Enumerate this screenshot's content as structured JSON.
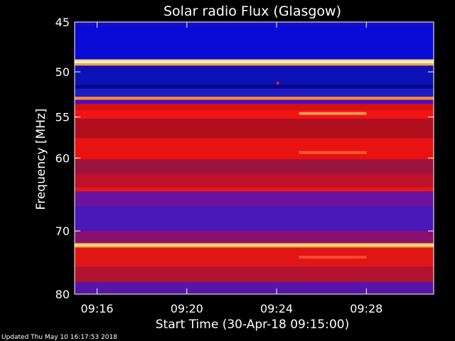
{
  "chart_data": {
    "type": "heatmap",
    "title": "Solar radio Flux (Glasgow)",
    "xlabel": "Start Time (30-Apr-18 09:15:00)",
    "ylabel": "Frequency [MHz]",
    "x_range": [
      "09:15:00",
      "09:31:00"
    ],
    "y_range_mhz": [
      45,
      80
    ],
    "y_scale": "log",
    "x_ticks": [
      {
        "t": "09:16:00",
        "label": "09:16"
      },
      {
        "t": "09:20:00",
        "label": "09:20"
      },
      {
        "t": "09:24:00",
        "label": "09:24"
      },
      {
        "t": "09:28:00",
        "label": "09:28"
      }
    ],
    "y_ticks": [
      {
        "value": 45,
        "label": "45"
      },
      {
        "value": 50,
        "label": "50"
      },
      {
        "value": 55,
        "label": "55"
      },
      {
        "value": 60,
        "label": "60"
      },
      {
        "value": 70,
        "label": "70"
      },
      {
        "value": 80,
        "label": "80"
      }
    ],
    "bands": [
      {
        "f_from": 45.0,
        "f_to": 45.4,
        "color": "#1010c8"
      },
      {
        "f_from": 45.4,
        "f_to": 48.7,
        "color": "#0a0ad6"
      },
      {
        "f_from": 48.7,
        "f_to": 48.9,
        "color": "#ffe070"
      },
      {
        "f_from": 48.9,
        "f_to": 49.1,
        "color": "#fffbe0"
      },
      {
        "f_from": 49.1,
        "f_to": 49.35,
        "color": "#ffa040"
      },
      {
        "f_from": 49.35,
        "f_to": 51.4,
        "color": "#0d12b4"
      },
      {
        "f_from": 51.4,
        "f_to": 51.8,
        "color": "#050590"
      },
      {
        "f_from": 51.8,
        "f_to": 52.7,
        "color": "#1c1cc0"
      },
      {
        "f_from": 52.7,
        "f_to": 53.05,
        "color": "#ff8a30"
      },
      {
        "f_from": 53.05,
        "f_to": 53.5,
        "color": "#4a10c0"
      },
      {
        "f_from": 53.5,
        "f_to": 54.2,
        "color": "#d81010"
      },
      {
        "f_from": 54.2,
        "f_to": 55.2,
        "color": "#f01414"
      },
      {
        "f_from": 55.2,
        "f_to": 57.5,
        "color": "#b0101e"
      },
      {
        "f_from": 57.5,
        "f_to": 60.2,
        "color": "#e81212"
      },
      {
        "f_from": 60.2,
        "f_to": 62.0,
        "color": "#9a1240"
      },
      {
        "f_from": 62.0,
        "f_to": 63.8,
        "color": "#c0102a"
      },
      {
        "f_from": 63.8,
        "f_to": 64.4,
        "color": "#e01818"
      },
      {
        "f_from": 64.4,
        "f_to": 66.5,
        "color": "#6a14a0"
      },
      {
        "f_from": 66.5,
        "f_to": 70.0,
        "color": "#4a18b8"
      },
      {
        "f_from": 70.0,
        "f_to": 71.8,
        "color": "#8a1070"
      },
      {
        "f_from": 71.8,
        "f_to": 72.0,
        "color": "#ffa030"
      },
      {
        "f_from": 72.0,
        "f_to": 72.3,
        "color": "#fff090"
      },
      {
        "f_from": 72.3,
        "f_to": 72.5,
        "color": "#ffa030"
      },
      {
        "f_from": 72.5,
        "f_to": 75.5,
        "color": "#e01616"
      },
      {
        "f_from": 75.5,
        "f_to": 78.0,
        "color": "#b01230"
      },
      {
        "f_from": 78.0,
        "f_to": 80.0,
        "color": "#5a14a8"
      }
    ],
    "features": [
      {
        "t_from": "09:25:00",
        "t_to": "09:28:00",
        "f": 54.6,
        "color": "#ff9a50"
      },
      {
        "t_from": "09:25:00",
        "t_to": "09:28:00",
        "f": 59.3,
        "color": "#ff5a30"
      },
      {
        "t_from": "09:25:00",
        "t_to": "09:28:00",
        "f": 74.0,
        "color": "#ff4a30"
      },
      {
        "t_from": "09:24:00",
        "t_to": "09:24:06",
        "f": 51.2,
        "color": "#ff2020"
      }
    ]
  },
  "footer": {
    "updated": "Updated Thu May 10 16:17:53 2018"
  }
}
